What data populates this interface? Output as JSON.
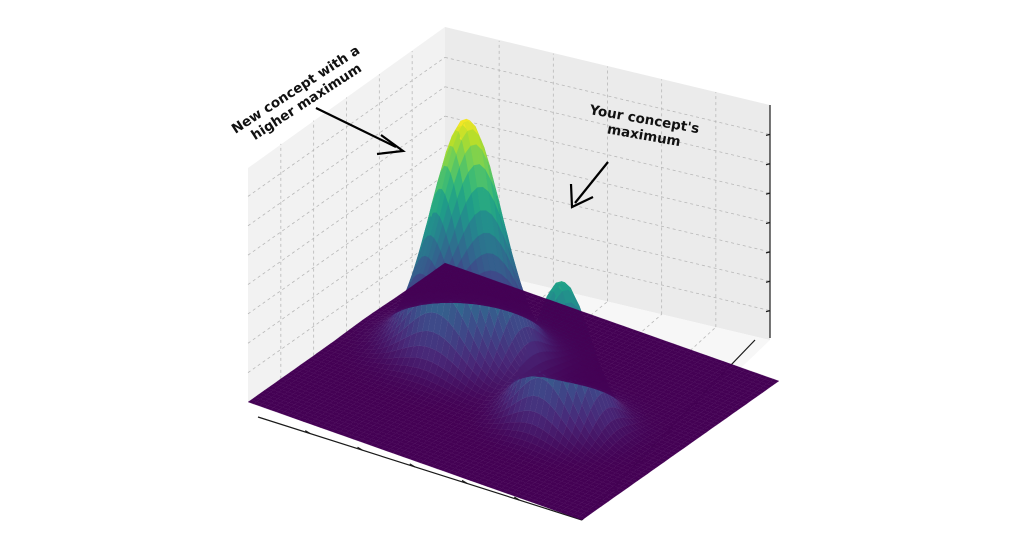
{
  "chart_data": {
    "type": "surface",
    "title": "",
    "xlabel": "",
    "ylabel": "",
    "zlabel": "",
    "grid": true,
    "colormap": "viridis",
    "x_range": [
      -3,
      3
    ],
    "y_range": [
      -3,
      3
    ],
    "z_range": [
      0,
      1
    ],
    "peaks": [
      {
        "x": -1.2,
        "y": -0.6,
        "height": 1.0,
        "width": 0.55
      },
      {
        "x": 1.1,
        "y": 0.4,
        "height": 0.6,
        "width": 0.45
      }
    ],
    "annotations": [
      {
        "text_lines": [
          "New concept with a",
          "higher maximum"
        ],
        "points_to": "higher peak"
      },
      {
        "text_lines": [
          "Your concept's",
          "maximum"
        ],
        "points_to": "lower peak"
      }
    ],
    "tick_labels_visible": false
  },
  "colors": {
    "pane_back": "#ebebeb",
    "pane_side": "#f2f2f2",
    "pane_floor": "#f7f7f7",
    "grid": "#b8b8b8",
    "axis": "#1a1a1a",
    "viridis": [
      "#440154",
      "#482878",
      "#3e4989",
      "#31688e",
      "#26828e",
      "#1f9e89",
      "#35b779",
      "#6ece58",
      "#b5de2b",
      "#fde725"
    ]
  }
}
